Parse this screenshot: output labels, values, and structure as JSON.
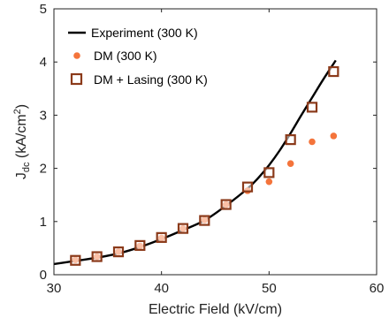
{
  "chart_data": {
    "type": "line",
    "xlabel": "Electric Field (kV/cm)",
    "ylabel": {
      "prefix": "J",
      "sub": "dc",
      "unit_prefix": " (kA/cm",
      "sup": "2",
      "unit_suffix": ")"
    },
    "xlim": [
      30,
      60
    ],
    "ylim": [
      0,
      5
    ],
    "xticks": [
      30,
      40,
      50,
      60
    ],
    "yticks": [
      0,
      1,
      2,
      3,
      4,
      5
    ],
    "grid": false,
    "legend_position": "top-left",
    "colors": {
      "experiment": "#000000",
      "dm": "#f4743b",
      "lasing_edge": "#8b3a1a",
      "lasing_fill": "#ffffff"
    },
    "series": [
      {
        "name": "Experiment (300 K)",
        "style": "line",
        "x": [
          30,
          32,
          34,
          36,
          38,
          40,
          42,
          44,
          46,
          48,
          49,
          50,
          51,
          52,
          53,
          54,
          55,
          56.2
        ],
        "y": [
          0.2,
          0.26,
          0.32,
          0.4,
          0.52,
          0.67,
          0.84,
          1.02,
          1.3,
          1.62,
          1.82,
          2.06,
          2.34,
          2.66,
          3.0,
          3.33,
          3.66,
          4.03
        ]
      },
      {
        "name": "DM (300 K)",
        "style": "dots",
        "x": [
          32,
          34,
          36,
          38,
          40,
          42,
          44,
          46,
          48,
          50,
          52,
          54,
          56
        ],
        "y": [
          0.28,
          0.34,
          0.43,
          0.54,
          0.69,
          0.87,
          1.03,
          1.32,
          1.58,
          1.75,
          2.09,
          2.5,
          2.61
        ]
      },
      {
        "name": "DM + Lasing (300 K)",
        "style": "squares",
        "x": [
          32,
          34,
          36,
          38,
          40,
          42,
          44,
          46,
          48,
          50,
          52,
          54,
          56
        ],
        "y": [
          0.27,
          0.34,
          0.43,
          0.55,
          0.7,
          0.87,
          1.02,
          1.32,
          1.65,
          1.92,
          2.54,
          3.15,
          3.82
        ]
      }
    ]
  }
}
